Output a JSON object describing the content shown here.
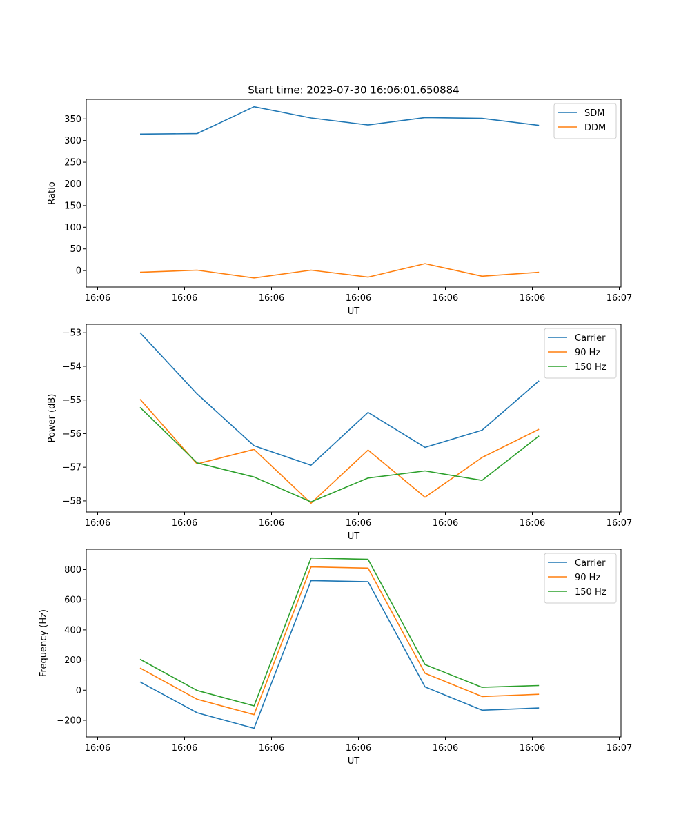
{
  "figure": {
    "title": "Start time: 2023-07-30 16:06:01.650884"
  },
  "chart_data": [
    {
      "type": "line",
      "title": "Start time: 2023-07-30 16:06:01.650884",
      "xlabel": "UT",
      "ylabel": "Ratio",
      "x_tick_labels": [
        "16:06",
        "16:06",
        "16:06",
        "16:06",
        "16:06",
        "16:06",
        "16:07"
      ],
      "y_ticks": [
        0,
        50,
        100,
        150,
        200,
        250,
        300,
        350
      ],
      "ylim": [
        -38,
        395
      ],
      "legend_position": "upper-right",
      "series": [
        {
          "name": "SDM",
          "color": "#1f77b4",
          "values": [
            315,
            316,
            378,
            352,
            336,
            353,
            351,
            335
          ]
        },
        {
          "name": "DDM",
          "color": "#ff7f0e",
          "values": [
            -4,
            1,
            -17,
            1,
            -15,
            16,
            -13,
            -4
          ]
        }
      ]
    },
    {
      "type": "line",
      "title": "",
      "xlabel": "UT",
      "ylabel": "Power (dB)",
      "x_tick_labels": [
        "16:06",
        "16:06",
        "16:06",
        "16:06",
        "16:06",
        "16:06",
        "16:07"
      ],
      "y_ticks": [
        -58,
        -57,
        -56,
        -55,
        -54,
        -53
      ],
      "ylim": [
        -58.33,
        -52.75
      ],
      "legend_position": "upper-right",
      "series": [
        {
          "name": "Carrier",
          "color": "#1f77b4",
          "values": [
            -53.0,
            -54.82,
            -56.36,
            -56.94,
            -55.37,
            -56.41,
            -55.9,
            -54.43
          ]
        },
        {
          "name": "90 Hz",
          "color": "#ff7f0e",
          "values": [
            -54.98,
            -56.9,
            -56.47,
            -58.07,
            -56.49,
            -57.89,
            -56.71,
            -55.87
          ]
        },
        {
          "name": "150 Hz",
          "color": "#2ca02c",
          "values": [
            -55.22,
            -56.87,
            -57.29,
            -58.03,
            -57.32,
            -57.11,
            -57.39,
            -56.07
          ]
        }
      ]
    },
    {
      "type": "line",
      "title": "",
      "xlabel": "UT",
      "ylabel": "Frequency (Hz)",
      "x_tick_labels": [
        "16:06",
        "16:06",
        "16:06",
        "16:06",
        "16:06",
        "16:06",
        "16:07"
      ],
      "y_ticks": [
        -200,
        0,
        200,
        400,
        600,
        800
      ],
      "ylim": [
        -310,
        935
      ],
      "legend_position": "upper-right",
      "series": [
        {
          "name": "Carrier",
          "color": "#1f77b4",
          "values": [
            55,
            -150,
            -253,
            727,
            720,
            22,
            -133,
            -118
          ]
        },
        {
          "name": "90 Hz",
          "color": "#ff7f0e",
          "values": [
            147,
            -60,
            -162,
            818,
            810,
            112,
            -42,
            -27
          ]
        },
        {
          "name": "150 Hz",
          "color": "#2ca02c",
          "values": [
            205,
            -2,
            -104,
            877,
            868,
            170,
            19,
            31
          ]
        }
      ]
    }
  ]
}
